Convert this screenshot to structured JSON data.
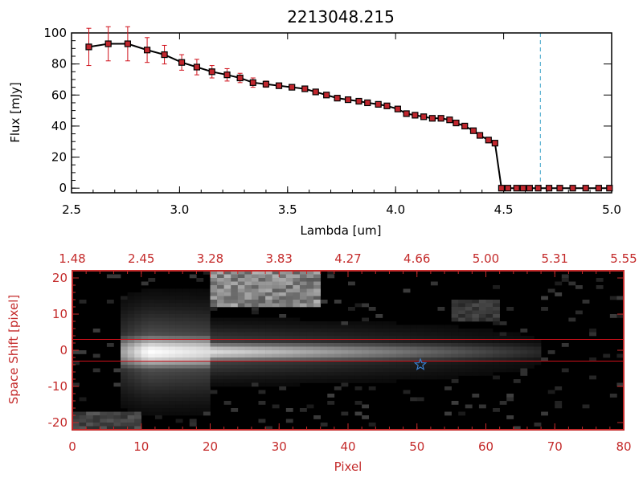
{
  "chart_data": [
    {
      "type": "line",
      "title": "2213048.215",
      "xlabel": "Lambda [um]",
      "ylabel": "Flux [mJy]",
      "xlim": [
        2.5,
        5.0
      ],
      "ylim": [
        -3,
        100
      ],
      "x_ticks": [
        "2.5",
        "3.0",
        "3.5",
        "4.0",
        "4.5",
        "5.0"
      ],
      "y_ticks": [
        "0",
        "20",
        "40",
        "60",
        "80",
        "100"
      ],
      "marker_line_color": "#000000",
      "marker_fill_color": "#c0262d",
      "errorbar_color": "#d0101a",
      "reference_line": {
        "x": 4.67,
        "color": "#3aa0c8",
        "style": "dashed"
      },
      "zero_line_color": "#d0101a",
      "series": [
        {
          "x": [
            2.58,
            2.67,
            2.76,
            2.85,
            2.93,
            3.01,
            3.08,
            3.15,
            3.22,
            3.28,
            3.34,
            3.4,
            3.46,
            3.52,
            3.58,
            3.63,
            3.68,
            3.73,
            3.78,
            3.83,
            3.87,
            3.92,
            3.96,
            4.01,
            4.05,
            4.09,
            4.13,
            4.17,
            4.21,
            4.25,
            4.28,
            4.32,
            4.36,
            4.39,
            4.43,
            4.46,
            4.49,
            4.52,
            4.56,
            4.59,
            4.62,
            4.66,
            4.71,
            4.76,
            4.82,
            4.88,
            4.94,
            4.99
          ],
          "y": [
            91,
            93,
            93,
            89,
            86,
            81,
            78,
            75,
            73,
            71,
            68,
            67,
            66,
            65,
            64,
            62,
            60,
            58,
            57,
            56,
            55,
            54,
            53,
            51,
            48,
            47,
            46,
            45,
            45,
            44,
            42,
            40,
            37,
            34,
            31,
            29,
            0,
            0,
            0,
            0,
            0,
            0,
            0,
            0,
            0,
            0,
            0,
            0
          ],
          "yerr": [
            12,
            11,
            11,
            8,
            6,
            5,
            5,
            4,
            4,
            3,
            3,
            2,
            1,
            1,
            1,
            1,
            1,
            1,
            1,
            1,
            1,
            1,
            1,
            1,
            1,
            1,
            1,
            1,
            1,
            1,
            1,
            1,
            1,
            1,
            1,
            1,
            0,
            0,
            0,
            0,
            0,
            0,
            0,
            0,
            0,
            0,
            0,
            0
          ]
        }
      ]
    },
    {
      "type": "heatmap",
      "xlabel": "Pixel",
      "ylabel": "Space Shift [pixel]",
      "xlim": [
        0,
        80
      ],
      "ylim": [
        -22,
        22
      ],
      "x_ticks": [
        "0",
        "10",
        "20",
        "30",
        "40",
        "50",
        "60",
        "70",
        "80"
      ],
      "y_ticks": [
        "-20",
        "-10",
        "0",
        "10",
        "20"
      ],
      "top_axis_ticks": [
        "1.48",
        "2.45",
        "3.28",
        "3.83",
        "4.27",
        "4.66",
        "5.00",
        "5.31",
        "5.55"
      ],
      "axis_color": "#c42b2b",
      "colormap": "grayscale",
      "extraction_window": {
        "y_low": -3,
        "y_high": 3,
        "color": "#d0101a"
      },
      "source_marker": {
        "x": 50.5,
        "y": -4,
        "symbol": "star",
        "color": "#3a7fd0"
      },
      "features": [
        {
          "kind": "trace",
          "x_start": 7,
          "x_end": 68,
          "y_center": -0.5,
          "peak_x": 11,
          "peak_level": 1.0
        },
        {
          "kind": "blob",
          "x_range": [
            20,
            36
          ],
          "y_range": [
            12,
            22
          ],
          "level": 0.7
        },
        {
          "kind": "blob",
          "x_range": [
            55,
            62
          ],
          "y_range": [
            8,
            14
          ],
          "level": 0.3
        },
        {
          "kind": "blob",
          "x_range": [
            0,
            10
          ],
          "y_range": [
            -22,
            -17
          ],
          "level": 0.35
        }
      ]
    }
  ]
}
